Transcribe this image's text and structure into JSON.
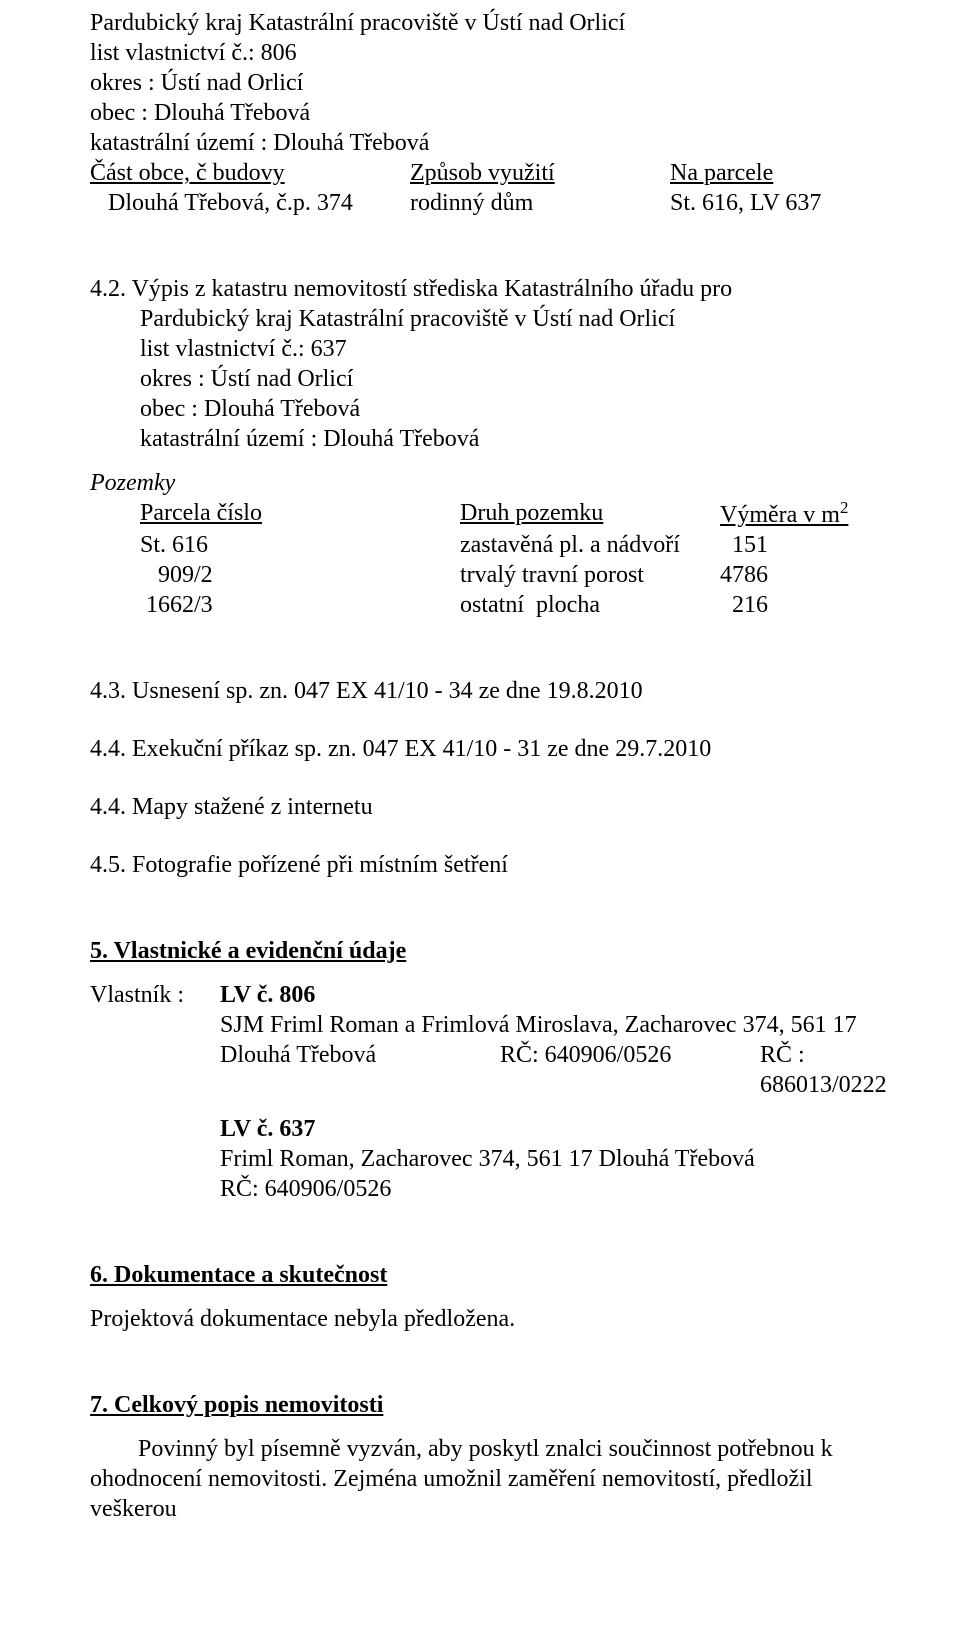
{
  "sec41": {
    "line1": "Pardubický kraj  Katastrální pracoviště v Ústí nad Orlicí",
    "line2": "list vlastnictví č.: 806",
    "line3": "okres : Ústí nad Orlicí",
    "line4": "obec  : Dlouhá Třebová",
    "line5": "katastrální území : Dlouhá Třebová",
    "row_hdr": {
      "c1": "Část obce, č budovy",
      "c2": "Způsob využití",
      "c3": "Na parcele"
    },
    "row_val": {
      "c1": "   Dlouhá Třebová, č.p. 374",
      "c2": "rodinný dům",
      "c3": "St. 616, LV 637"
    }
  },
  "sec42": {
    "title_a": "4.2. Výpis z katastru nemovitostí střediska Katastrálního úřadu pro",
    "title_b": "Pardubický kraj  Katastrální pracoviště v Ústí nad Orlicí",
    "line2": "list vlastnictví č.: 637",
    "line3": "okres : Ústí nad Orlicí",
    "line4": "obec  : Dlouhá Třebová",
    "line5": "katastrální území : Dlouhá Třebová",
    "pozemky_label": "Pozemky",
    "tbl_hdr": {
      "c1": "Parcela číslo",
      "c2": "Druh pozemku",
      "c3_pre": "Výměra v m",
      "c3_sup": "2"
    },
    "rows": [
      {
        "c1": "St. 616",
        "c2": "zastavěná pl. a nádvoří",
        "c3": "  151"
      },
      {
        "c1": "   909/2",
        "c2": "trvalý travní porost",
        "c3": "4786"
      },
      {
        "c1": " 1662/3",
        "c2": "ostatní  plocha",
        "c3": "  216"
      }
    ]
  },
  "sec43": "4.3. Usnesení sp. zn. 047 EX 41/10 - 34 ze dne 19.8.2010",
  "sec44a": "4.4. Exekuční příkaz sp. zn.  047 EX 41/10 - 31 ze dne 29.7.2010",
  "sec44b": "4.4. Mapy stažené z internetu",
  "sec45": "4.5. Fotografie pořízené při místním šetření",
  "sec5": {
    "heading": "5. Vlastnické a evidenční údaje",
    "owner_label": "Vlastník :",
    "lv806_label": "LV č. 806",
    "lv806_line1": "SJM Friml Roman a Frimlová Miroslava,  Zacharovec 374, 561 17",
    "lv806_rc": {
      "a": "Dlouhá Třebová",
      "b": "RČ: 640906/0526",
      "c": "RČ : 686013/0222"
    },
    "lv637_label": "LV č. 637",
    "lv637_line1": "Friml Roman,  Zacharovec 374, 561 17 Dlouhá Třebová",
    "lv637_line2": "RČ: 640906/0526"
  },
  "sec6": {
    "heading": "6. Dokumentace a skutečnost",
    "body": "Projektová dokumentace nebyla předložena."
  },
  "sec7": {
    "heading": "7. Celkový popis nemovitosti",
    "body1": "        Povinný byl písemně vyzván, aby poskytl znalci součinnost potřebnou k",
    "body2": "ohodnocení nemovitosti. Zejména umožnil zaměření nemovitostí, předložil veškerou"
  }
}
